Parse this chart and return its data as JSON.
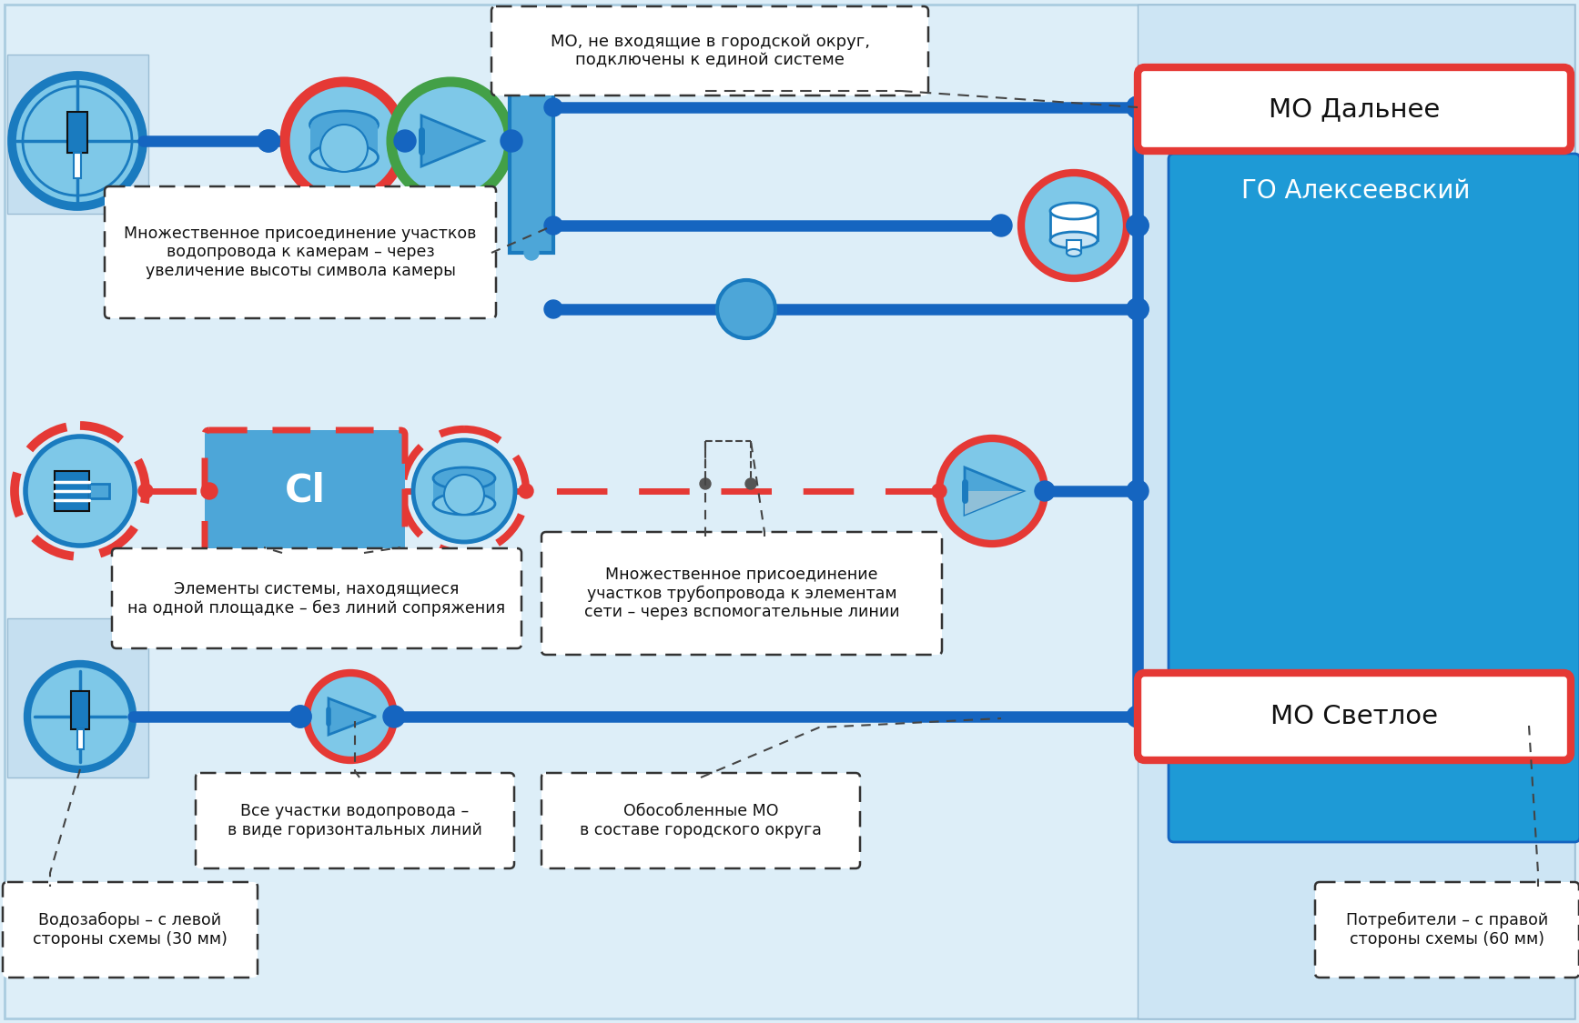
{
  "bg_outer": "#ddeef8",
  "bg_light_panel": "#cde5f4",
  "bg_blue_panel": "#1e9ad6",
  "line_blue": "#1565c0",
  "red_stroke": "#e53935",
  "green_stroke": "#43a047",
  "light_fill": "#7ec8e8",
  "med_fill": "#4da6d8",
  "dark_fill": "#1a7bbf",
  "mo_dalnee_text": "МО Дальнее",
  "go_alekseevsky_text": "ГО Алексеевский",
  "mo_svetloe_text": "МО Светлое",
  "callout1": "МО, не входящие в городской округ,\nподключены к единой системе",
  "callout2": "Множественное присоединение участков\nводопровода к камерам – через\nувеличение высоты символа камеры",
  "callout3": "Элементы системы, находящиеся\nна одной площадке – без линий сопряжения",
  "callout4": "Множественное присоединение\nучастков трубопровода к элементам\nсети – через вспомогательные линии",
  "callout5": "Все участки водопровода –\nв виде горизонтальных линий",
  "callout6": "Обособленные МО\nв составе городского округа",
  "callout7": "Водозаборы – с левой\nстороны схемы (30 мм)",
  "callout8": "Потребители – с правой\nстороны схемы (60 мм)"
}
